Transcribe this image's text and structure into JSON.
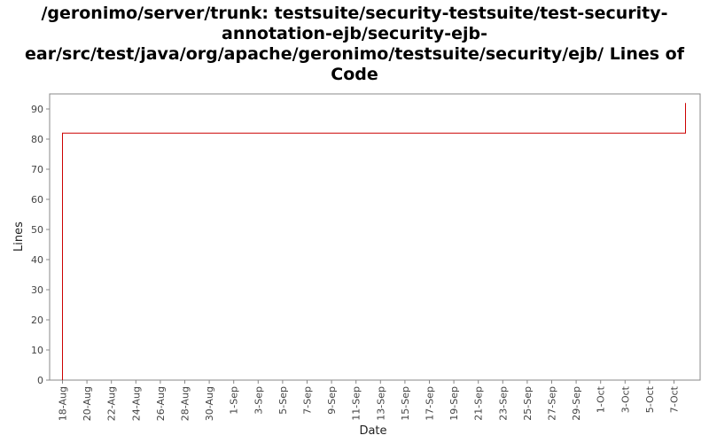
{
  "chart_data": {
    "type": "line",
    "title": "/geronimo/server/trunk: testsuite/security-testsuite/test-security-annotation-ejb/security-ejb-ear/src/test/java/org/apache/geronimo/testsuite/security/ejb/ Lines of Code",
    "xlabel": "Date",
    "ylabel": "Lines",
    "ylim": [
      0,
      95
    ],
    "yticks": [
      0,
      10,
      20,
      30,
      40,
      50,
      60,
      70,
      80,
      90
    ],
    "xticks": [
      "18-Aug",
      "20-Aug",
      "22-Aug",
      "24-Aug",
      "26-Aug",
      "28-Aug",
      "30-Aug",
      "1-Sep",
      "3-Sep",
      "5-Sep",
      "7-Sep",
      "9-Sep",
      "11-Sep",
      "13-Sep",
      "15-Sep",
      "17-Sep",
      "19-Sep",
      "21-Sep",
      "23-Sep",
      "25-Sep",
      "27-Sep",
      "29-Sep",
      "1-Oct",
      "3-Oct",
      "5-Oct",
      "7-Oct"
    ],
    "grid": false,
    "series": [
      {
        "color": "#cc0000",
        "x": [
          "18-Aug",
          "18-Aug",
          "7-Oct",
          "7-Oct"
        ],
        "values": [
          0,
          82,
          82,
          92
        ]
      }
    ]
  }
}
